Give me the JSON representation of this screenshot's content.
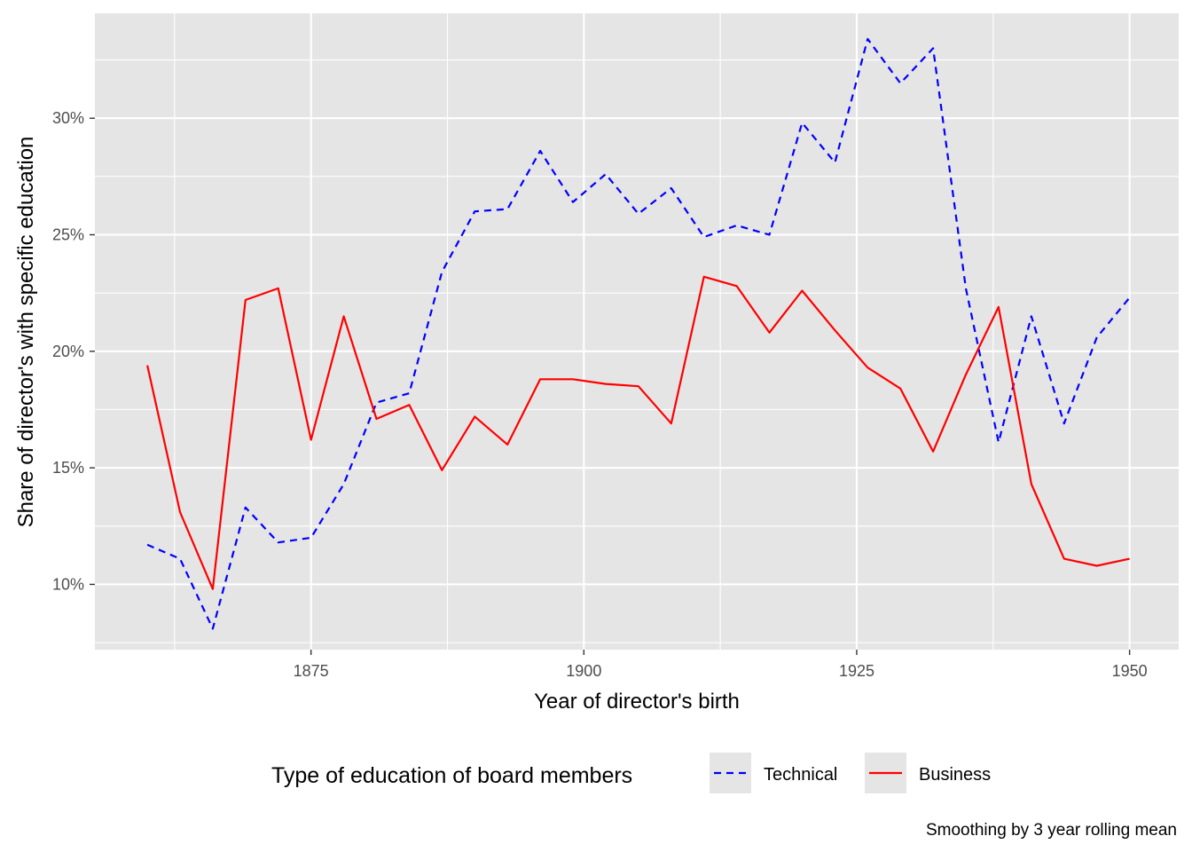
{
  "chart_data": {
    "type": "line",
    "title": "",
    "xlabel": "Year of director's birth",
    "ylabel": "Share of director's with specific education",
    "caption": "Smoothing by 3 year rolling mean",
    "xlim": [
      1855.2,
      1954.5
    ],
    "ylim": [
      0.072,
      0.345
    ],
    "x_ticks": [
      1875,
      1900,
      1925,
      1950
    ],
    "x_ticks_minor": [
      1862.5,
      1887.5,
      1912.5,
      1937.5
    ],
    "x_tick_labels": [
      "1875",
      "1900",
      "1925",
      "1950"
    ],
    "y_ticks": [
      0.1,
      0.15,
      0.2,
      0.25,
      0.3
    ],
    "y_ticks_minor": [
      0.075,
      0.125,
      0.175,
      0.225,
      0.275,
      0.325
    ],
    "y_tick_labels": [
      "10%",
      "15%",
      "20%",
      "25%",
      "30%"
    ],
    "grid": true,
    "panel_background": "#e5e5e5",
    "grid_color": "#ffffff",
    "legend": {
      "title": "Type of education of board members",
      "placement": "bottom",
      "entries": [
        "Technical",
        "Business"
      ]
    },
    "series": [
      {
        "name": "Technical",
        "color": "#0000ff",
        "dash": "dashed",
        "x": [
          1860,
          1863,
          1866,
          1869,
          1872,
          1875,
          1878,
          1881,
          1884,
          1887,
          1890,
          1893,
          1896,
          1899,
          1902,
          1905,
          1908,
          1911,
          1914,
          1917,
          1920,
          1923,
          1926,
          1929,
          1932,
          1935,
          1938,
          1941,
          1944,
          1947,
          1950
        ],
        "values": [
          0.117,
          0.111,
          0.081,
          0.133,
          0.118,
          0.12,
          0.143,
          0.178,
          0.182,
          0.234,
          0.26,
          0.261,
          0.286,
          0.264,
          0.276,
          0.259,
          0.27,
          0.249,
          0.254,
          0.25,
          0.298,
          0.281,
          0.334,
          0.315,
          0.33,
          0.227,
          0.161,
          0.215,
          0.169,
          0.206,
          0.223
        ]
      },
      {
        "name": "Business",
        "color": "#ff0000",
        "dash": "solid",
        "x": [
          1860,
          1863,
          1866,
          1869,
          1872,
          1875,
          1878,
          1881,
          1884,
          1887,
          1890,
          1893,
          1896,
          1899,
          1902,
          1905,
          1908,
          1911,
          1914,
          1917,
          1920,
          1923,
          1926,
          1929,
          1932,
          1935,
          1938,
          1941,
          1944,
          1947,
          1950
        ],
        "values": [
          0.194,
          0.131,
          0.098,
          0.222,
          0.227,
          0.162,
          0.215,
          0.171,
          0.177,
          0.149,
          0.172,
          0.16,
          0.188,
          0.188,
          0.186,
          0.185,
          0.169,
          0.232,
          0.228,
          0.208,
          0.226,
          0.209,
          0.193,
          0.184,
          0.157,
          0.19,
          0.219,
          0.143,
          0.111,
          0.108,
          0.111
        ]
      }
    ]
  }
}
